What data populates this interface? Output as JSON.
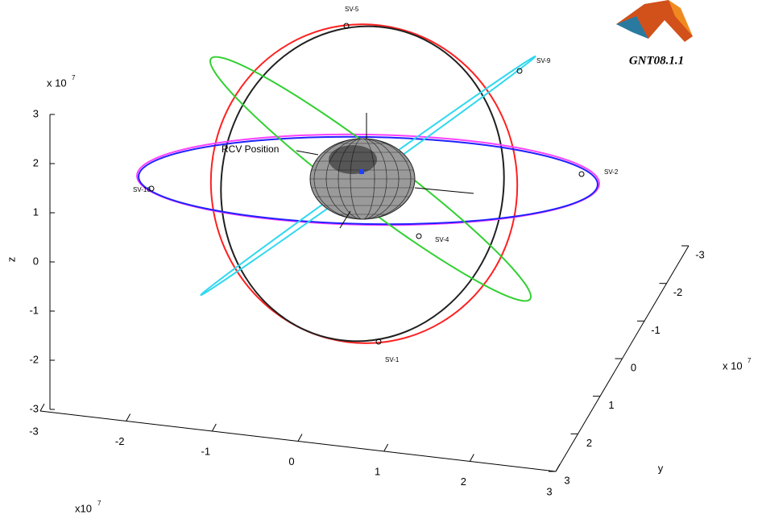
{
  "chart_data": {
    "type": "orbit3d",
    "logo_label": "GNT08.1.1",
    "z_label": "z",
    "y_label": "y",
    "z_exponent": {
      "base": "x 10",
      "power": "7"
    },
    "y_exponent": {
      "base": "x 10",
      "power": "7"
    },
    "x_exponent": {
      "base": "x10",
      "power": "7"
    },
    "xlim": [
      -3,
      3
    ],
    "xticks": [
      -3,
      -2,
      -1,
      0,
      1,
      2,
      3
    ],
    "ylim": [
      -3,
      3
    ],
    "yticks": [
      -3,
      -2,
      -1,
      0,
      1,
      2,
      3
    ],
    "zlim": [
      -3,
      3
    ],
    "zticks": [
      -3,
      -2,
      -1,
      0,
      1,
      2,
      3
    ],
    "receiver_label": "RCV Position",
    "satellites": [
      "SV-5",
      "SV-9",
      "SV-2",
      "SV-10",
      "SV-4",
      "SV-1"
    ],
    "orbit_colors": [
      "#ff2020",
      "#202020",
      "#ff40ff",
      "#2020ff",
      "#30d030",
      "#30d8f0"
    ]
  }
}
